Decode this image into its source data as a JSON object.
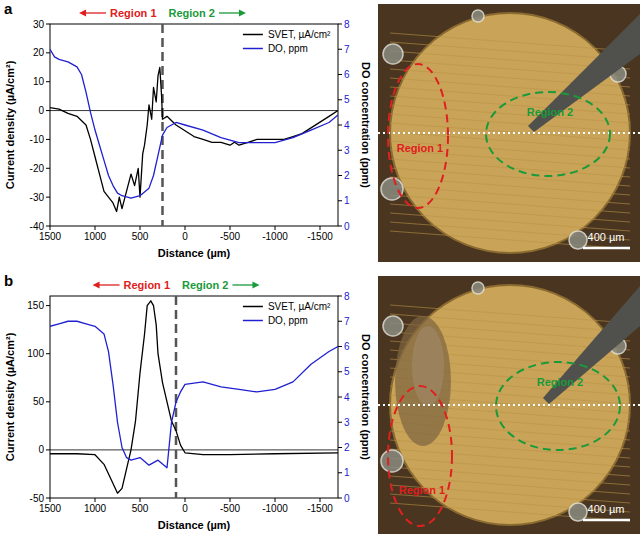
{
  "chart_data": [
    {
      "panel": "a",
      "type": "line",
      "x_label": "Distance (µm)",
      "y_label": "Current density (µA/cm²)",
      "y2_label": "DO concentration (ppm)",
      "xlim": [
        1500,
        -1700
      ],
      "xticks": [
        1500,
        1000,
        500,
        0,
        -500,
        -1000,
        -1500
      ],
      "ylim": [
        -40,
        30
      ],
      "yticks": [
        -40,
        -30,
        -20,
        -10,
        0,
        10,
        20,
        30
      ],
      "y2lim": [
        0,
        8
      ],
      "y2ticks": [
        0,
        1,
        2,
        3,
        4,
        5,
        6,
        7,
        8
      ],
      "grid": false,
      "legend": "upper right",
      "reference_line": 0,
      "divider_x": 250,
      "annotations": [
        "Region 1",
        "Region 2"
      ],
      "series": [
        {
          "name": "SVET, µA/cm²",
          "color": "#000000",
          "x": [
            1500,
            1400,
            1300,
            1200,
            1100,
            1050,
            1000,
            950,
            900,
            850,
            800,
            760,
            730,
            700,
            650,
            600,
            560,
            520,
            500,
            470,
            450,
            420,
            400,
            370,
            350,
            320,
            300,
            280,
            260,
            250,
            200,
            100,
            0,
            -100,
            -200,
            -300,
            -400,
            -500,
            -550,
            -600,
            -700,
            -800,
            -900,
            -1000,
            -1100,
            -1200,
            -1300,
            -1400,
            -1500,
            -1600,
            -1700
          ],
          "values": [
            1,
            0.5,
            -1,
            -2,
            -5,
            -10,
            -16,
            -22,
            -28,
            -30,
            -32,
            -35,
            -30,
            -34,
            -28,
            -22,
            -26,
            -20,
            -30,
            -15,
            -12,
            -5,
            2,
            -3,
            8,
            3,
            12,
            15,
            5,
            -3,
            -2,
            -5,
            -7,
            -9,
            -10,
            -11,
            -11,
            -12,
            -11,
            -12,
            -11,
            -10,
            -10,
            -10,
            -10,
            -9,
            -8,
            -6,
            -4,
            -2,
            0
          ]
        },
        {
          "name": "DO, ppm",
          "color": "#2020d0",
          "axis": "y2",
          "x": [
            1500,
            1450,
            1400,
            1300,
            1200,
            1150,
            1100,
            1050,
            1000,
            950,
            900,
            850,
            800,
            750,
            700,
            600,
            500,
            400,
            350,
            300,
            250,
            200,
            100,
            0,
            -200,
            -400,
            -600,
            -800,
            -1000,
            -1200,
            -1400,
            -1600,
            -1700
          ],
          "values": [
            7,
            6.7,
            6.6,
            6.5,
            6.3,
            6,
            5.3,
            4.5,
            3.8,
            3.2,
            2.6,
            2,
            1.6,
            1.3,
            1.2,
            1.1,
            1.2,
            1.5,
            2,
            2.8,
            3.6,
            3.9,
            4.1,
            4,
            3.8,
            3.5,
            3.3,
            3.3,
            3.3,
            3.5,
            3.8,
            4.1,
            4.4
          ]
        }
      ],
      "micrograph": {
        "labels": [
          "Region 1",
          "Region 2"
        ],
        "scale_bar": "400 µm"
      }
    },
    {
      "panel": "b",
      "type": "line",
      "x_label": "Distance (µm)",
      "y_label": "Current density (µA/cm²)",
      "y2_label": "DO concentration (ppm)",
      "xlim": [
        1500,
        -1700
      ],
      "xticks": [
        1500,
        1000,
        500,
        0,
        -500,
        -1000,
        -1500
      ],
      "ylim": [
        -50,
        160
      ],
      "yticks": [
        -50,
        0,
        50,
        100,
        150
      ],
      "y2lim": [
        0,
        8
      ],
      "y2ticks": [
        0,
        1,
        2,
        3,
        4,
        5,
        6,
        7,
        8
      ],
      "grid": false,
      "legend": "upper right",
      "reference_line": 0,
      "divider_x": 100,
      "annotations": [
        "Region 1",
        "Region 2"
      ],
      "series": [
        {
          "name": "SVET, µA/cm²",
          "color": "#000000",
          "x": [
            1500,
            1200,
            1000,
            900,
            800,
            750,
            700,
            650,
            600,
            550,
            500,
            450,
            420,
            380,
            350,
            320,
            300,
            250,
            200,
            150,
            100,
            50,
            0,
            -200,
            -500,
            -1000,
            -1700
          ],
          "values": [
            -4,
            -4,
            -5,
            -15,
            -35,
            -45,
            -40,
            -20,
            0,
            30,
            80,
            120,
            150,
            155,
            150,
            130,
            100,
            70,
            50,
            30,
            20,
            5,
            -3,
            -5,
            -5,
            -4,
            -3
          ]
        },
        {
          "name": "DO, ppm",
          "color": "#2020d0",
          "axis": "y2",
          "x": [
            1500,
            1400,
            1300,
            1200,
            1100,
            1000,
            900,
            850,
            800,
            750,
            700,
            650,
            600,
            500,
            400,
            300,
            200,
            150,
            100,
            50,
            0,
            -200,
            -400,
            -600,
            -800,
            -1000,
            -1200,
            -1400,
            -1600,
            -1700
          ],
          "values": [
            6.8,
            6.9,
            7,
            7,
            6.9,
            6.8,
            6.5,
            5.8,
            4.5,
            3,
            2,
            1.6,
            1.5,
            1.6,
            1.3,
            1.5,
            1.2,
            3,
            3.8,
            4.2,
            4.5,
            4.6,
            4.4,
            4.3,
            4.2,
            4.3,
            4.6,
            5.3,
            5.8,
            6
          ]
        }
      ],
      "micrograph": {
        "labels": [
          "Region 1",
          "Region 2"
        ],
        "scale_bar": "400 µm"
      }
    }
  ]
}
